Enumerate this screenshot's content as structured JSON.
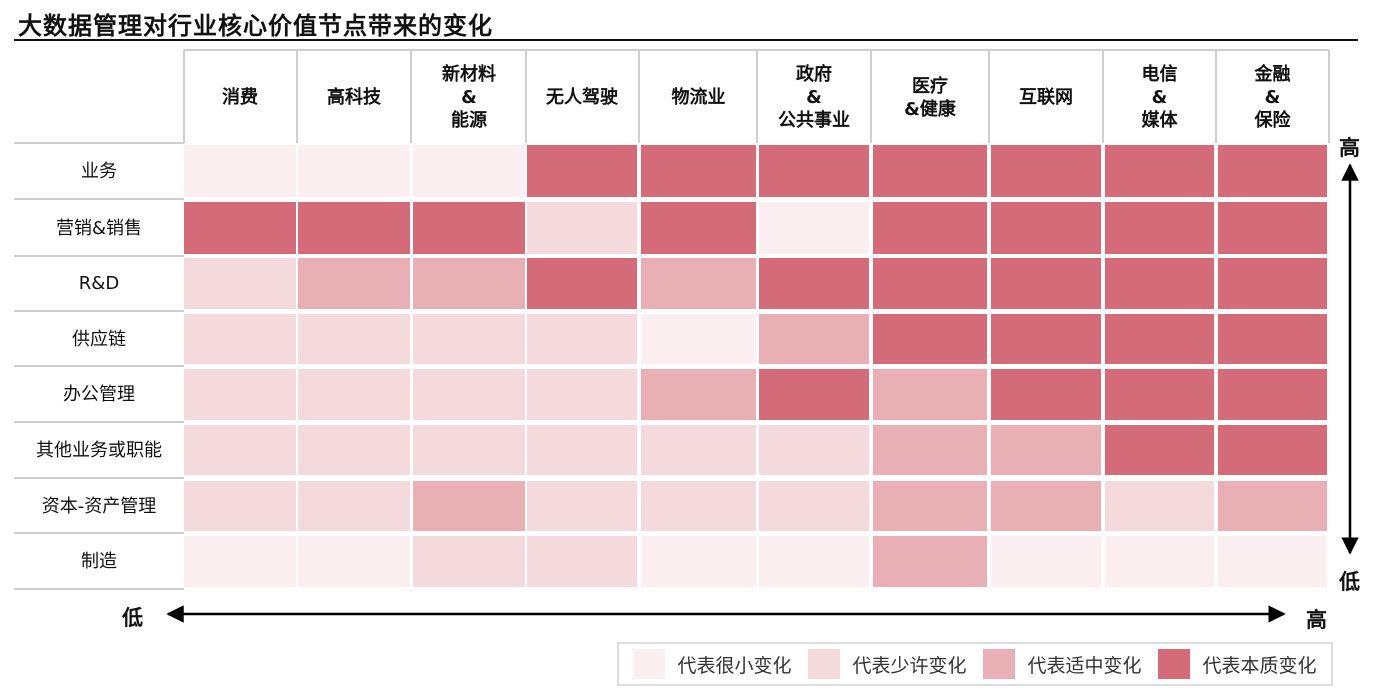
{
  "title": "大数据管理对行业核心价值节点带来的变化",
  "axis": {
    "x_low": "低",
    "x_high": "高",
    "y_high": "高",
    "y_low": "低"
  },
  "legend": [
    {
      "label": "代表很小变化",
      "color": "#fbeff1"
    },
    {
      "label": "代表少许变化",
      "color": "#f5dadd"
    },
    {
      "label": "代表适中变化",
      "color": "#e8b0b5"
    },
    {
      "label": "代表本质变化",
      "color": "#d36b78"
    }
  ],
  "chart_data": {
    "type": "heatmap",
    "title": "大数据管理对行业核心价值节点带来的变化",
    "columns": [
      "消费",
      "高科技",
      "新材料\n&\n能源",
      "无人驾驶",
      "物流业",
      "政府\n&\n公共事业",
      "医疗\n&健康",
      "互联网",
      "电信\n&\n媒体",
      "金融\n&\n保险"
    ],
    "rows": [
      "业务",
      "营销&销售",
      "R&D",
      "供应链",
      "办公管理",
      "其他业务或职能",
      "资本-资产管理",
      "制造"
    ],
    "levels": [
      "代表很小变化",
      "代表少许变化",
      "代表适中变化",
      "代表本质变化"
    ],
    "values": [
      [
        1,
        1,
        1,
        4,
        4,
        4,
        4,
        4,
        4,
        4
      ],
      [
        4,
        4,
        4,
        2,
        4,
        1,
        4,
        4,
        4,
        4
      ],
      [
        2,
        3,
        3,
        4,
        3,
        4,
        4,
        4,
        4,
        4
      ],
      [
        2,
        2,
        2,
        2,
        1,
        3,
        4,
        4,
        4,
        4
      ],
      [
        2,
        2,
        2,
        2,
        3,
        4,
        3,
        4,
        4,
        4
      ],
      [
        2,
        2,
        2,
        2,
        2,
        2,
        3,
        3,
        4,
        4
      ],
      [
        2,
        2,
        3,
        2,
        2,
        2,
        3,
        3,
        2,
        3
      ],
      [
        1,
        1,
        2,
        2,
        1,
        1,
        3,
        1,
        1,
        1
      ]
    ]
  }
}
